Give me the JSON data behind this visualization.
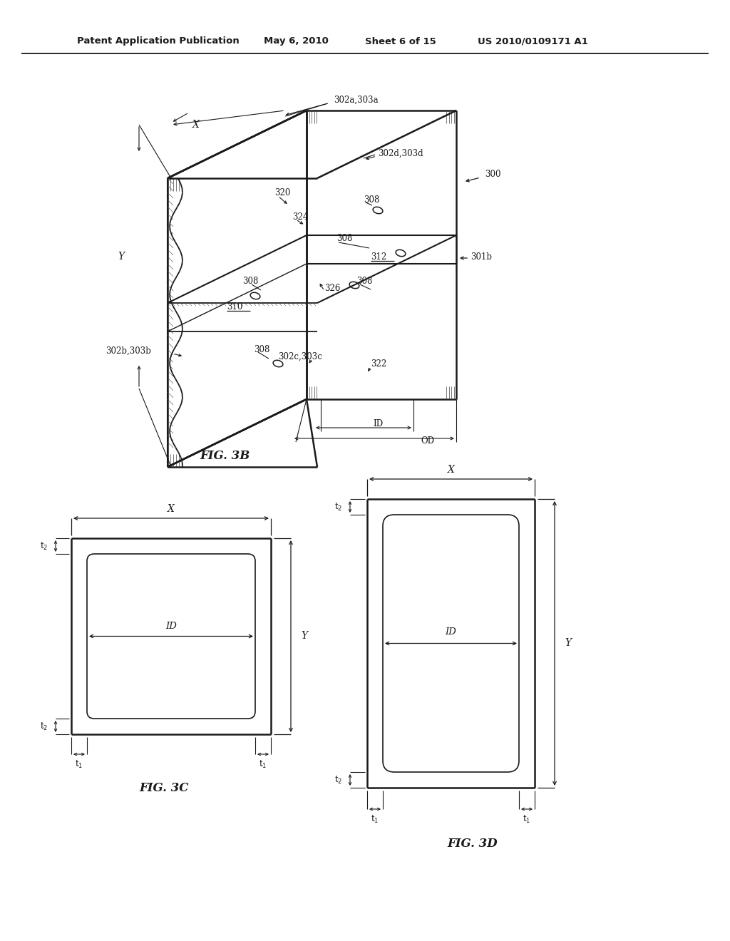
{
  "bg_color": "#ffffff",
  "header_left": "Patent Application Publication",
  "header_center": "May 6, 2010   Sheet 6 of 15",
  "header_right": "US 2010/0109171 A1",
  "fig3b_caption": "FIG. 3B",
  "fig3c_caption": "FIG. 3C",
  "fig3d_caption": "FIG. 3D",
  "line_color": "#1a1a1a",
  "text_color": "#1a1a1a"
}
